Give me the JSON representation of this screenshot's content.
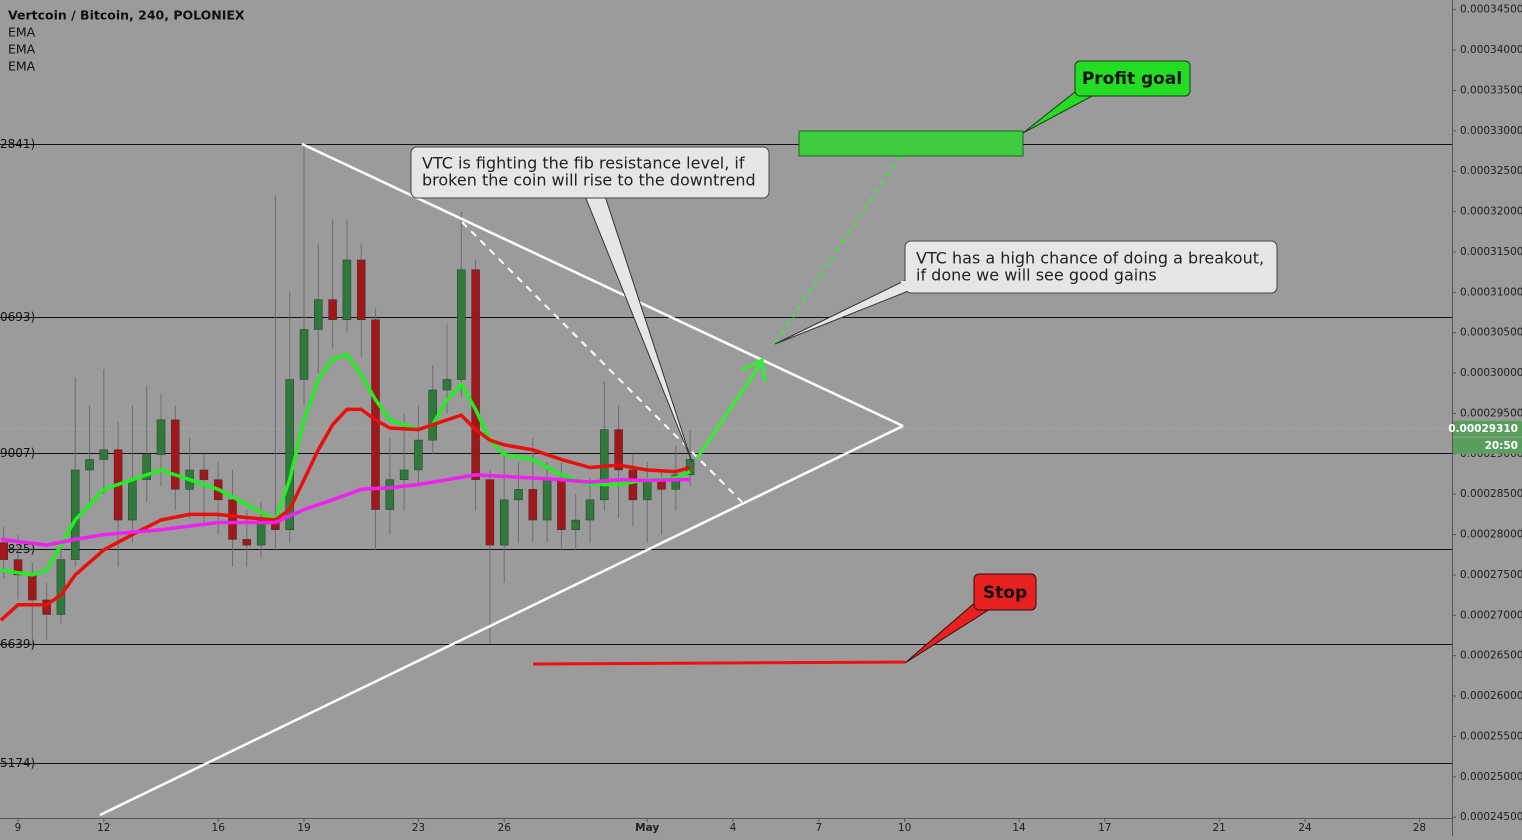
{
  "chart_data": {
    "type": "candlestick",
    "title": "Vertcoin / Bitcoin, 240, POLONIEX",
    "up_color": "#2f7a3a",
    "down_color": "#a3161a",
    "wick_color": "#6e6e6e",
    "x": [
      8.5,
      9,
      9.5,
      10,
      10.5,
      11,
      11.5,
      12,
      12.5,
      13,
      13.5,
      14,
      14.5,
      15,
      15.5,
      16,
      16.5,
      17,
      17.5,
      18,
      18.5,
      19,
      19.5,
      20,
      20.5,
      21,
      21.5,
      22,
      22.5,
      23,
      23.5,
      24,
      24.5,
      25,
      25.5,
      26,
      26.5,
      27,
      27.5,
      28,
      28.5,
      29,
      29.5,
      30,
      30.5,
      31,
      31.5,
      32,
      32.5
    ],
    "open": [
      0.000279,
      0.0002769,
      0.000275,
      0.0002719,
      0.0002701,
      0.0002769,
      0.000288,
      0.0002893,
      0.0002905,
      0.0002818,
      0.0002868,
      0.0002899,
      0.0002942,
      0.0002856,
      0.000288,
      0.0002868,
      0.0002843,
      0.0002794,
      0.0002787,
      0.0002818,
      0.0002806,
      0.0002992,
      0.0003054,
      0.0003091,
      0.0003066,
      0.000314,
      0.0003066,
      0.0002831,
      0.0002868,
      0.000288,
      0.0002917,
      0.0002979,
      0.0002992,
      0.0003128,
      0.0002868,
      0.0002787,
      0.0002843,
      0.0002856,
      0.0002818,
      0.0002868,
      0.0002806,
      0.0002818,
      0.0002843,
      0.000293,
      0.000288,
      0.0002843,
      0.0002868,
      0.0002856,
      0.0002874
    ],
    "high": [
      0.000281,
      0.00028,
      0.0002765,
      0.000274,
      0.000279,
      0.0002995,
      0.000296,
      0.0003005,
      0.000294,
      0.000296,
      0.0002985,
      0.0002975,
      0.000296,
      0.000292,
      0.00029,
      0.000289,
      0.000288,
      0.000283,
      0.000284,
      0.000322,
      0.00031,
      0.0003284,
      0.000316,
      0.000319,
      0.000319,
      0.000316,
      0.000308,
      0.000292,
      0.000295,
      0.000296,
      0.000301,
      0.000306,
      0.00032,
      0.000314,
      0.000288,
      0.00029,
      0.000289,
      0.000292,
      0.000289,
      0.000289,
      0.000285,
      0.000287,
      0.000299,
      0.000296,
      0.00029,
      0.000289,
      0.000288,
      0.000291,
      0.000293
    ],
    "low": [
      0.0002745,
      0.000272,
      0.000266,
      0.000267,
      0.000269,
      0.000276,
      0.000284,
      0.000285,
      0.000276,
      0.000279,
      0.000284,
      0.000286,
      0.000283,
      0.000282,
      0.000281,
      0.00028,
      0.000276,
      0.000276,
      0.000277,
      0.000278,
      0.000279,
      0.000296,
      0.0003,
      0.000303,
      0.000305,
      0.000302,
      0.000278,
      0.00028,
      0.000283,
      0.000286,
      0.00029,
      0.000295,
      0.000297,
      0.000283,
      0.0002665,
      0.000274,
      0.000279,
      0.000279,
      0.000279,
      0.000278,
      0.000278,
      0.000279,
      0.000283,
      0.000282,
      0.000281,
      0.000279,
      0.00028,
      0.000283,
      0.000286
    ],
    "close": [
      0.0002769,
      0.000275,
      0.0002719,
      0.0002701,
      0.0002769,
      0.000288,
      0.0002893,
      0.0002905,
      0.0002818,
      0.0002868,
      0.0002899,
      0.0002942,
      0.0002856,
      0.000288,
      0.0002868,
      0.0002843,
      0.0002794,
      0.0002787,
      0.0002818,
      0.0002806,
      0.0002992,
      0.0003054,
      0.0003091,
      0.0003066,
      0.000314,
      0.0003066,
      0.0002831,
      0.0002868,
      0.000288,
      0.0002917,
      0.0002979,
      0.0002992,
      0.0003128,
      0.0002868,
      0.0002787,
      0.0002843,
      0.0002856,
      0.0002818,
      0.0002868,
      0.0002806,
      0.0002818,
      0.0002843,
      0.000293,
      0.000288,
      0.0002843,
      0.0002868,
      0.0002856,
      0.0002874,
      0.0002893
    ],
    "series": [
      {
        "name": "EMA",
        "color": "#22ee22",
        "x": [
          8.4,
          9.5,
          10,
          10.5,
          11,
          12,
          13,
          14,
          15,
          16,
          17,
          18,
          18.5,
          19,
          19.5,
          20,
          20.5,
          21,
          21.5,
          22,
          23,
          23.5,
          24,
          24.5,
          25,
          25.5,
          26,
          27,
          28,
          29,
          30,
          31,
          32,
          32.5
        ],
        "values": [
          0.0002756,
          0.000275,
          0.0002756,
          0.0002787,
          0.0002818,
          0.0002856,
          0.0002868,
          0.000288,
          0.0002868,
          0.0002856,
          0.0002837,
          0.0002818,
          0.0002868,
          0.0002942,
          0.0002992,
          0.0003017,
          0.0003023,
          0.0002998,
          0.0002967,
          0.0002942,
          0.000293,
          0.0002936,
          0.0002967,
          0.0002986,
          0.0002955,
          0.0002917,
          0.0002899,
          0.0002893,
          0.0002874,
          0.0002862,
          0.0002862,
          0.0002868,
          0.000287,
          0.0002878
        ]
      },
      {
        "name": "EMA",
        "color": "#e8100c",
        "x": [
          8.4,
          9,
          10,
          10.5,
          11,
          12,
          13,
          14,
          15,
          16,
          17,
          18,
          18.5,
          19,
          19.5,
          20,
          20.5,
          21,
          21.5,
          22,
          23,
          24,
          24.5,
          25,
          25.5,
          26,
          27,
          28,
          29,
          30,
          31,
          32,
          32.5
        ],
        "values": [
          0.0002694,
          0.0002713,
          0.0002713,
          0.0002725,
          0.000275,
          0.0002781,
          0.00028,
          0.0002818,
          0.0002825,
          0.0002825,
          0.0002821,
          0.0002818,
          0.0002831,
          0.0002868,
          0.0002905,
          0.0002936,
          0.0002955,
          0.0002955,
          0.0002942,
          0.0002932,
          0.000293,
          0.0002942,
          0.0002948,
          0.000293,
          0.0002917,
          0.0002911,
          0.0002905,
          0.0002893,
          0.0002883,
          0.0002886,
          0.000288,
          0.0002878,
          0.0002883
        ]
      },
      {
        "name": "EMA",
        "color": "#ee22ee",
        "x": [
          8.4,
          10,
          11,
          12,
          14,
          16,
          18,
          19,
          20,
          21,
          22,
          23,
          24,
          25,
          26,
          27,
          28,
          29,
          30,
          31,
          32,
          32.5
        ],
        "values": [
          0.0002794,
          0.0002787,
          0.0002794,
          0.00028,
          0.0002806,
          0.0002815,
          0.0002815,
          0.0002831,
          0.0002843,
          0.0002856,
          0.0002858,
          0.0002862,
          0.0002868,
          0.0002874,
          0.0002872,
          0.000287,
          0.0002868,
          0.0002865,
          0.0002868,
          0.0002867,
          0.0002868,
          0.0002868
        ]
      }
    ],
    "levels": [
      {
        "value": 0.00032841,
        "label": "2841)"
      },
      {
        "value": 0.00030693,
        "label": "0693)"
      },
      {
        "value": 0.00029007,
        "label": "9007)"
      },
      {
        "value": 0.00027825,
        "label": "7825)"
      },
      {
        "value": 0.00026639,
        "label": "6639)"
      },
      {
        "value": 0.00025174,
        "label": "5174)"
      }
    ],
    "last_price": {
      "value": 0.0002931,
      "label": "0.00029310",
      "color": "#5a9e5e"
    },
    "countdown": "20:50",
    "xlim": [
      8.37,
      59.14
    ],
    "xticks": [
      9,
      12,
      16,
      19,
      23,
      26,
      {
        "value": 31,
        "label": "May"
      },
      {
        "value": 34,
        "label": "4"
      },
      {
        "value": 37,
        "label": "7"
      },
      {
        "value": 40,
        "label": "10"
      },
      {
        "value": 44,
        "label": "14"
      },
      {
        "value": 47,
        "label": "17"
      },
      {
        "value": 51,
        "label": "21"
      },
      {
        "value": 54,
        "label": "24"
      },
      {
        "value": 58,
        "label": "28"
      }
    ],
    "ylim": [
      0.0002449,
      0.0003462
    ],
    "yticks": [
      {
        "value": 0.000345,
        "label": "0.00034500"
      },
      {
        "value": 0.00034,
        "label": "0.00034000"
      },
      {
        "value": 0.000335,
        "label": "0.00033500"
      },
      {
        "value": 0.00033,
        "label": "0.00033000"
      },
      {
        "value": 0.000325,
        "label": "0.00032500"
      },
      {
        "value": 0.00032,
        "label": "0.00032000"
      },
      {
        "value": 0.000315,
        "label": "0.00031500"
      },
      {
        "value": 0.00031,
        "label": "0.00031000"
      },
      {
        "value": 0.000305,
        "label": "0.00030500"
      },
      {
        "value": 0.0003,
        "label": "0.00030000"
      },
      {
        "value": 0.000295,
        "label": "0.00029500"
      },
      {
        "value": 0.00029,
        "label": "0.00029000"
      },
      {
        "value": 0.000285,
        "label": "0.00028500"
      },
      {
        "value": 0.00028,
        "label": "0.00028000"
      },
      {
        "value": 0.000275,
        "label": "0.00027500"
      },
      {
        "value": 0.00027,
        "label": "0.00027000"
      },
      {
        "value": 0.000265,
        "label": "0.00026500"
      },
      {
        "value": 0.00026,
        "label": "0.00026000"
      },
      {
        "value": 0.000255,
        "label": "0.00025500"
      },
      {
        "value": 0.00025,
        "label": "0.00025000"
      },
      {
        "value": 0.000245,
        "label": "0.00024500"
      }
    ],
    "annotations": {
      "callout_resistance": [
        "VTC is fighting the fib resistance level, if",
        "broken the coin will rise to the downtrend"
      ],
      "callout_breakout": [
        "VTC has a high chance of doing a breakout,",
        "if done we will see good gains"
      ],
      "profit": "Profit goal",
      "stop": "Stop"
    }
  }
}
